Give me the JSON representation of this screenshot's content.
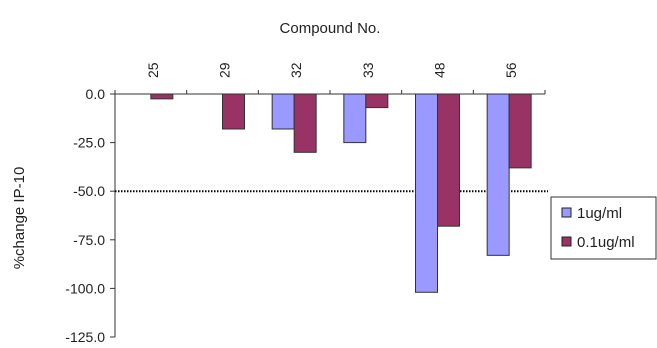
{
  "chart_data": {
    "type": "bar",
    "title": "Compound No.",
    "ylabel": "%change IP-10",
    "xlabel": "",
    "categories": [
      "25",
      "29",
      "32",
      "33",
      "48",
      "56"
    ],
    "series": [
      {
        "name": "1ug/ml",
        "values": [
          null,
          null,
          -18,
          -25,
          -102,
          -83
        ],
        "color": "#9999ff"
      },
      {
        "name": "0.1ug/ml",
        "values": [
          -2.5,
          -18,
          -30,
          -7,
          -68,
          -38
        ],
        "color": "#993366"
      }
    ],
    "ylim": [
      -125,
      0
    ],
    "yticks": [
      0,
      -25,
      -50,
      -75,
      -100,
      -125
    ],
    "ytick_labels": [
      "0.0",
      "-25.0",
      "-50.0",
      "-75.0",
      "-100.0",
      "-125.0"
    ],
    "reference_line": {
      "value": -50,
      "style": "dotted"
    },
    "x_axis_position": "top",
    "grid": false,
    "legend_position": "right"
  }
}
